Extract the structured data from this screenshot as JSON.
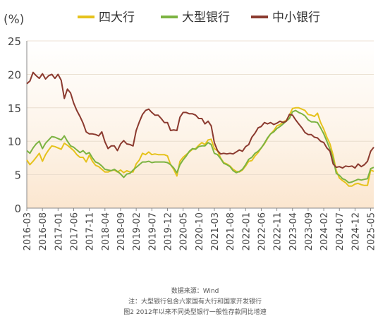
{
  "chart_data": {
    "type": "line",
    "unit_label": "(%)",
    "ylim": [
      0,
      25
    ],
    "yticks": [
      "0",
      "5",
      "10",
      "15",
      "20",
      "25"
    ],
    "x_tick_labels": [
      "2016-03",
      "2016-08",
      "2017-01",
      "2017-06",
      "2017-11",
      "2018-04",
      "2018-09",
      "2019-02",
      "2019-07",
      "2019-12",
      "2020-05",
      "2020-10",
      "2021-03",
      "2021-08",
      "2022-01",
      "2022-06",
      "2022-11",
      "2023-04",
      "2023-09",
      "2024-02",
      "2024-07",
      "2024-12",
      "2025-05"
    ],
    "x_tick_index": [
      0,
      5,
      10,
      15,
      20,
      25,
      30,
      35,
      40,
      45,
      50,
      55,
      60,
      65,
      70,
      75,
      80,
      85,
      90,
      95,
      100,
      105,
      110
    ],
    "legend": [
      "四大行",
      "大型银行",
      "中小银行"
    ],
    "colors": [
      "#e6c21c",
      "#7cb342",
      "#8b3a2f"
    ],
    "series": [
      {
        "name": "四大行",
        "values": [
          7.2,
          6.5,
          7.0,
          7.6,
          8.2,
          7.0,
          8.0,
          8.7,
          9.3,
          9.2,
          9.0,
          8.8,
          9.7,
          9.4,
          9.0,
          8.6,
          8.0,
          7.6,
          7.6,
          6.9,
          7.9,
          7.0,
          6.4,
          6.2,
          5.8,
          5.4,
          5.4,
          5.6,
          5.7,
          5.4,
          5.7,
          5.3,
          5.6,
          5.4,
          5.4,
          6.6,
          7.2,
          8.2,
          8.0,
          8.4,
          8.0,
          8.1,
          8.0,
          8.0,
          8.0,
          7.8,
          6.5,
          5.8,
          4.8,
          7.0,
          7.6,
          8.0,
          8.4,
          8.8,
          8.9,
          9.4,
          9.8,
          9.5,
          10.2,
          10.3,
          8.9,
          8.6,
          7.5,
          6.8,
          6.6,
          6.3,
          5.8,
          5.5,
          5.4,
          5.7,
          6.3,
          7.0,
          7.1,
          7.8,
          8.3,
          9.0,
          9.6,
          10.4,
          11.1,
          11.6,
          12.3,
          12.5,
          12.9,
          13.1,
          13.9,
          14.9,
          15.0,
          15.0,
          14.8,
          14.6,
          14.0,
          13.9,
          13.7,
          14.2,
          12.8,
          11.8,
          10.6,
          9.6,
          7.9,
          5.6,
          4.5,
          4.1,
          3.8,
          3.3,
          3.3,
          3.6,
          3.7,
          3.5,
          3.4,
          3.4,
          5.7,
          5.5
        ]
      },
      {
        "name": "大型银行",
        "values": [
          8.6,
          8.2,
          9.0,
          9.6,
          10.0,
          8.9,
          9.7,
          10.2,
          10.7,
          10.6,
          10.4,
          10.2,
          10.8,
          10.0,
          9.3,
          9.1,
          8.7,
          8.3,
          8.6,
          8.1,
          8.3,
          7.5,
          6.9,
          6.7,
          6.3,
          5.8,
          5.7,
          5.6,
          5.8,
          5.5,
          5.1,
          4.6,
          5.1,
          5.2,
          5.7,
          6.1,
          6.5,
          6.9,
          6.9,
          7.0,
          6.8,
          6.9,
          6.9,
          6.9,
          6.9,
          6.8,
          6.5,
          6.0,
          5.3,
          6.5,
          7.2,
          7.8,
          8.5,
          8.9,
          8.8,
          9.2,
          9.3,
          9.3,
          9.8,
          9.5,
          8.2,
          8.0,
          7.4,
          6.7,
          6.5,
          6.2,
          5.6,
          5.3,
          5.5,
          5.8,
          6.5,
          7.3,
          7.6,
          8.2,
          8.5,
          9.0,
          9.7,
          10.5,
          11.1,
          11.4,
          11.9,
          12.2,
          12.6,
          13.0,
          13.4,
          14.4,
          14.6,
          14.3,
          14.1,
          13.8,
          13.2,
          12.9,
          12.9,
          12.8,
          12.0,
          11.1,
          10.0,
          8.8,
          7.4,
          5.2,
          4.9,
          4.4,
          4.2,
          3.8,
          3.9,
          4.1,
          4.3,
          4.2,
          4.3,
          4.4,
          5.9,
          6.1
        ]
      },
      {
        "name": "中小银行",
        "values": [
          18.6,
          19.0,
          20.3,
          19.8,
          19.4,
          20.1,
          19.3,
          19.8,
          20.0,
          19.4,
          20.0,
          19.1,
          16.4,
          17.8,
          17.2,
          15.7,
          14.6,
          13.7,
          12.7,
          11.4,
          11.1,
          11.1,
          11.0,
          10.8,
          11.4,
          9.9,
          8.9,
          9.3,
          9.3,
          8.6,
          9.6,
          10.1,
          9.6,
          9.5,
          9.3,
          11.6,
          12.9,
          14.0,
          14.6,
          14.8,
          14.3,
          13.9,
          13.9,
          13.4,
          12.8,
          12.8,
          11.6,
          11.7,
          11.6,
          13.6,
          14.3,
          14.3,
          14.1,
          14.1,
          13.9,
          13.4,
          13.4,
          12.6,
          13.0,
          12.3,
          9.8,
          8.6,
          8.1,
          8.2,
          8.1,
          8.2,
          8.1,
          8.4,
          8.7,
          8.5,
          9.2,
          9.5,
          10.6,
          11.2,
          12.0,
          12.2,
          12.8,
          12.6,
          12.8,
          12.5,
          12.7,
          13.0,
          12.8,
          13.0,
          14.0,
          13.9,
          13.2,
          12.6,
          12.0,
          11.3,
          11.0,
          11.0,
          10.6,
          10.5,
          10.0,
          9.8,
          9.0,
          8.5,
          6.6,
          6.1,
          6.2,
          6.0,
          6.3,
          6.2,
          6.3,
          6.0,
          6.6,
          6.2,
          6.5,
          7.0,
          8.5,
          9.1
        ]
      }
    ]
  },
  "footer": {
    "source": "数据来源：Wind",
    "note": "注：大型银行包含六家国有大行和国家开发银行",
    "caption": "图2 2012年以来不同类型银行一般性存款同比增速"
  }
}
